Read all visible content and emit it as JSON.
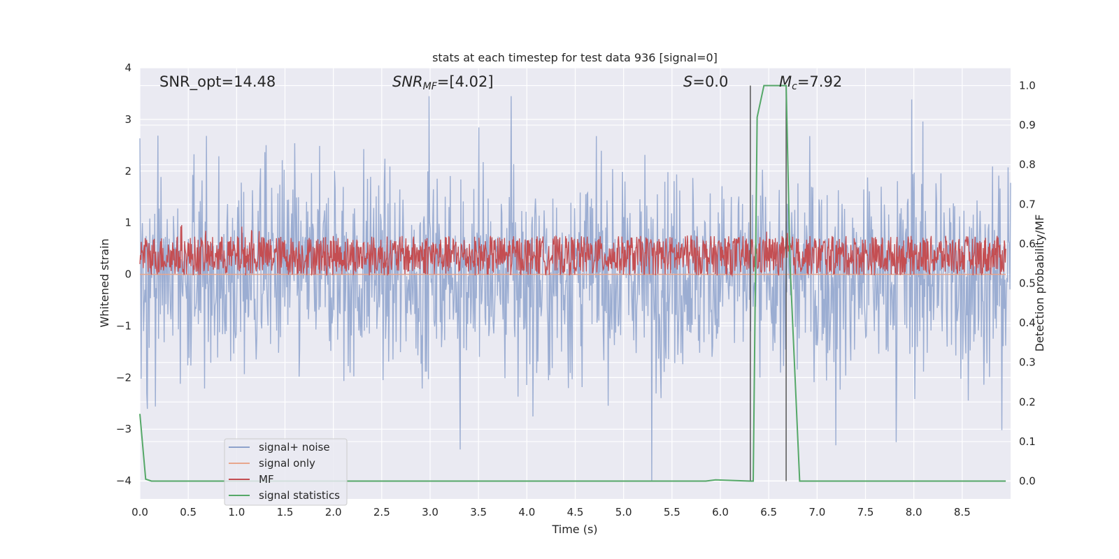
{
  "chart_data": {
    "type": "line",
    "title": "stats at each timestep for test data 936 [signal=0]",
    "xlabel": "Time (s)",
    "ylabel_left": "Whitened strain",
    "ylabel_right": "Detection probability/MF",
    "xlim": [
      0.0,
      9.0
    ],
    "ylim_left": [
      -4.35,
      4.0
    ],
    "ylim_right": [
      -0.045,
      1.045
    ],
    "x_ticks": [
      "0.0",
      "0.5",
      "1.0",
      "1.5",
      "2.0",
      "2.5",
      "3.0",
      "3.5",
      "4.0",
      "4.5",
      "5.0",
      "5.5",
      "6.0",
      "6.5",
      "7.0",
      "7.5",
      "8.0",
      "8.5"
    ],
    "y_ticks_left": [
      "−4",
      "−3",
      "−2",
      "−1",
      "0",
      "1",
      "2",
      "3",
      "4"
    ],
    "y_ticks_right": [
      "0.0",
      "0.1",
      "0.2",
      "0.3",
      "0.4",
      "0.5",
      "0.6",
      "0.7",
      "0.8",
      "0.9",
      "1.0"
    ],
    "grid": true,
    "legend_position": "bottom-left",
    "annotations": {
      "snr_opt": "SNR_opt=14.48",
      "snr_mf_main": "SNR",
      "snr_mf_sub": "MF",
      "snr_mf_rest": "=[4.02]",
      "s_main": "S",
      "s_rest": "=0.0",
      "mc_main": "M",
      "mc_sub": "c",
      "mc_rest": "=7.92"
    },
    "vlines_x": [
      6.31,
      6.68
    ],
    "series": [
      {
        "name": "signal+ noise",
        "color": "#8da2cc",
        "description_values": "noise around 0, typical amplitude ±1.5, peaks to ±3.5"
      },
      {
        "name": "signal only",
        "color": "#e8a68c",
        "values_constant": 0.0
      },
      {
        "name": "MF",
        "color": "#c44e52",
        "band_right_axis": [
          0.52,
          0.62
        ]
      },
      {
        "name": "signal statistics",
        "color": "#55a868",
        "x": [
          0.0,
          0.06,
          0.12,
          5.5,
          5.85,
          5.95,
          6.31,
          6.34,
          6.38,
          6.45,
          6.68,
          6.72,
          6.82,
          8.95
        ],
        "values": [
          0.17,
          0.005,
          0.0,
          0.0,
          0.0,
          0.003,
          0.0,
          0.0,
          0.92,
          1.0,
          1.0,
          0.55,
          0.0,
          0.0
        ]
      }
    ]
  }
}
